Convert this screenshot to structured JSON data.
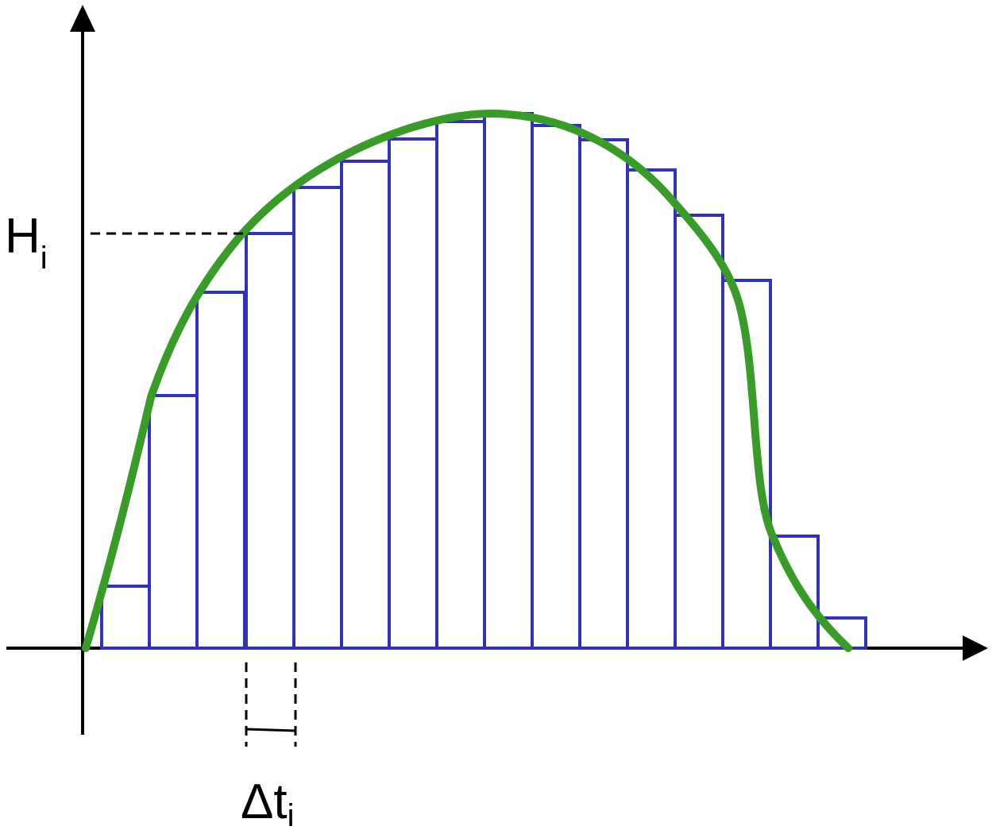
{
  "labels": {
    "height_main": "H",
    "height_sub": "i",
    "width_main": "Δt",
    "width_sub": "i"
  },
  "colors": {
    "axis": "#000000",
    "bar_outline": "#3333b0",
    "curve": "#3a9a2a",
    "dashed": "#000000",
    "background": "#ffffff"
  }
}
